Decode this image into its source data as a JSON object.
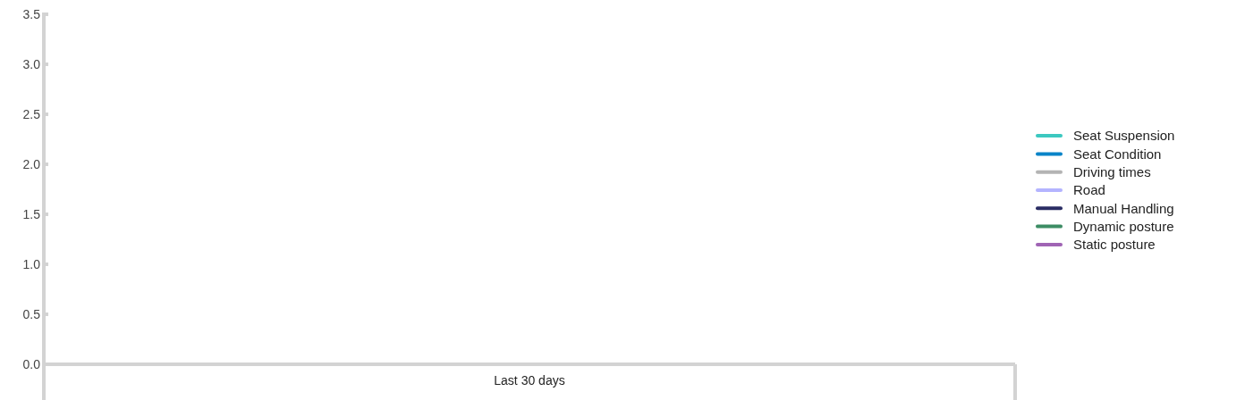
{
  "chart_data": {
    "type": "line",
    "categories": [
      "Last 30 days"
    ],
    "series": [
      {
        "name": "Seat Suspension",
        "color": "#3cc8c0",
        "values": [
          null
        ]
      },
      {
        "name": "Seat Condition",
        "color": "#0a84c8",
        "values": [
          null
        ]
      },
      {
        "name": "Driving times",
        "color": "#b4b4b4",
        "values": [
          null
        ]
      },
      {
        "name": "Road",
        "color": "#b4b4ff",
        "values": [
          null
        ]
      },
      {
        "name": "Manual Handling",
        "color": "#2a2e64",
        "values": [
          null
        ]
      },
      {
        "name": "Dynamic posture",
        "color": "#3c8c64",
        "values": [
          null
        ]
      },
      {
        "name": "Static posture",
        "color": "#a064b4",
        "values": [
          null
        ]
      }
    ],
    "ylim": [
      0,
      3.5
    ],
    "yticks": [
      {
        "value": 0,
        "label": "0.0"
      },
      {
        "value": 0.5,
        "label": "0.5"
      },
      {
        "value": 1,
        "label": "1.0"
      },
      {
        "value": 1.5,
        "label": "1.5"
      },
      {
        "value": 2,
        "label": "2.0"
      },
      {
        "value": 2.5,
        "label": "2.5"
      },
      {
        "value": 3,
        "label": "3.0"
      },
      {
        "value": 3.5,
        "label": "3.5"
      }
    ],
    "grid": false,
    "legend": "right"
  }
}
